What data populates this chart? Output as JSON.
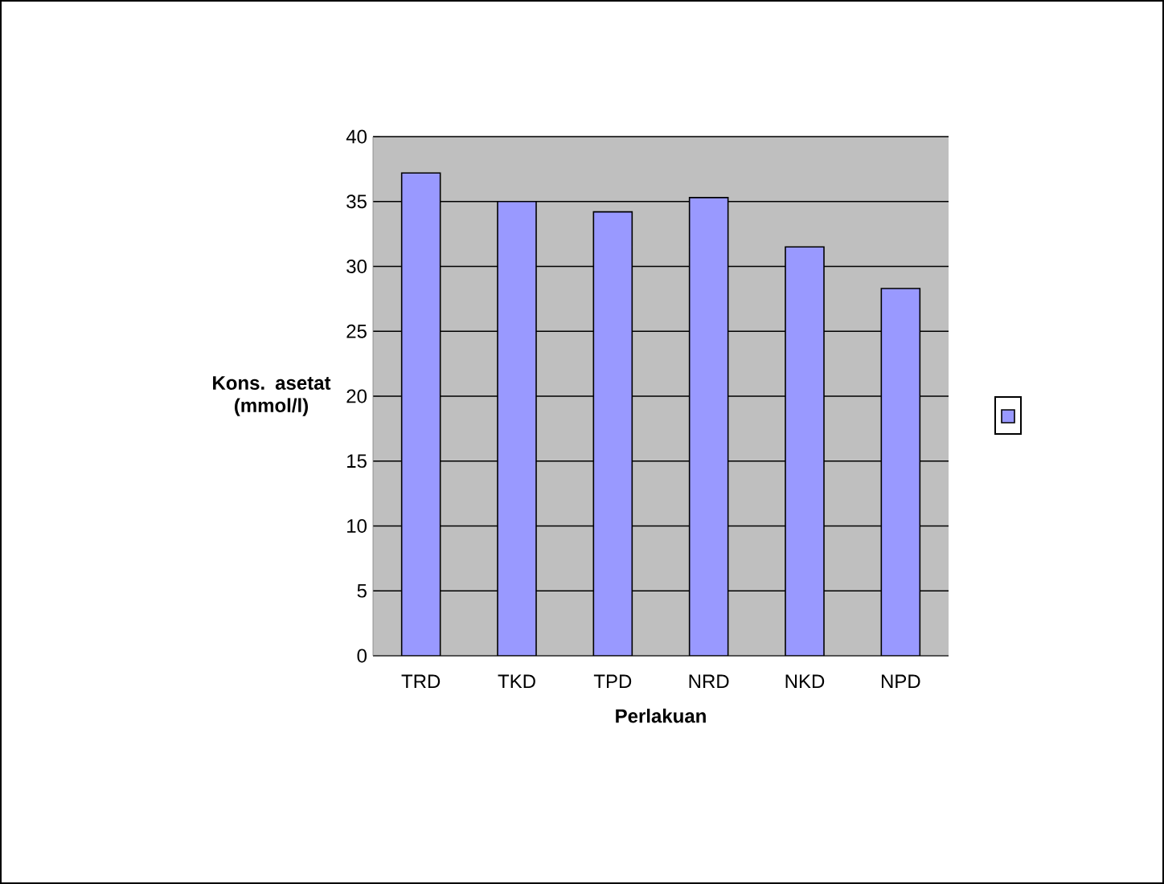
{
  "chart_data": {
    "type": "bar",
    "xlabel": "Perlakuan",
    "ylabel": "Kons. asetat (mmol/l)",
    "categories": [
      "TRD",
      "TKD",
      "TPD",
      "NRD",
      "NKD",
      "NPD"
    ],
    "series": [
      {
        "color": "#9999ff",
        "values": [
          37.2,
          35.0,
          34.2,
          35.3,
          31.5,
          28.3
        ]
      }
    ],
    "ylim": [
      0,
      40
    ],
    "yticks": [
      0,
      5,
      10,
      15,
      20,
      25,
      30,
      35,
      40
    ],
    "grid": "y"
  }
}
